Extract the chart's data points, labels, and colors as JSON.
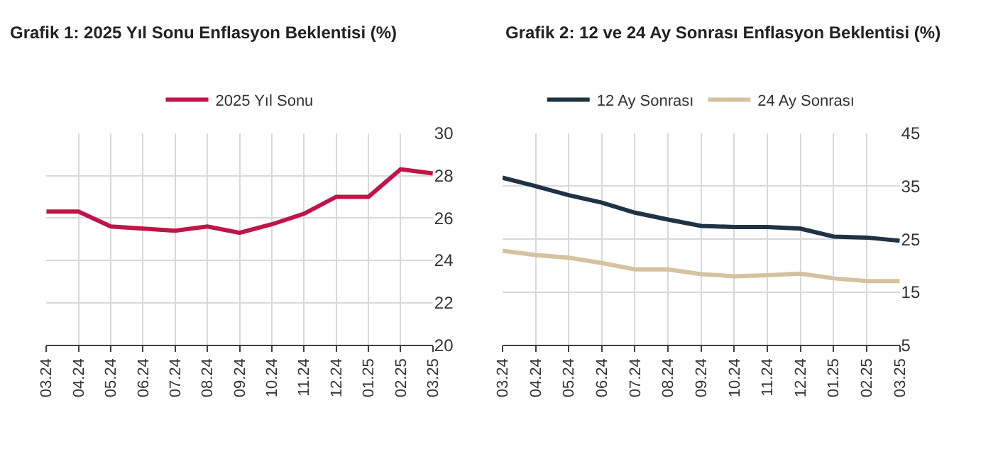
{
  "chart_data": [
    {
      "type": "line",
      "title": "Grafik 1: 2025 Yıl Sonu Enflasyon Beklentisi (%)",
      "categories": [
        "03.24",
        "04.24",
        "05.24",
        "06.24",
        "07.24",
        "08.24",
        "09.24",
        "10.24",
        "11.24",
        "12.24",
        "01.25",
        "02.25",
        "03.25"
      ],
      "series": [
        {
          "name": "2025 Yıl Sonu",
          "color": "#c0144a",
          "values": [
            26.3,
            26.3,
            25.6,
            25.5,
            25.4,
            25.6,
            25.3,
            25.7,
            26.2,
            27.0,
            27.0,
            28.3,
            28.1
          ]
        }
      ],
      "ylim": [
        20,
        30
      ],
      "yticks": [
        20,
        22,
        24,
        26,
        28,
        30
      ],
      "grid": true,
      "legend": "top"
    },
    {
      "type": "line",
      "title": "Grafik 2: 12 ve 24 Ay Sonrası Enflasyon Beklentisi (%)",
      "categories": [
        "03.24",
        "04.24",
        "05.24",
        "06.24",
        "07.24",
        "08.24",
        "09.24",
        "10.24",
        "11.24",
        "12.24",
        "01.25",
        "02.25",
        "03.25"
      ],
      "series": [
        {
          "name": "12 Ay Sonrası",
          "color": "#1f3344",
          "values": [
            36.6,
            35.0,
            33.3,
            31.9,
            30.0,
            28.7,
            27.5,
            27.3,
            27.3,
            27.0,
            25.5,
            25.3,
            24.7
          ]
        },
        {
          "name": "24 Ay Sonrası",
          "color": "#d4c2a0",
          "values": [
            22.8,
            22.0,
            21.5,
            20.5,
            19.3,
            19.3,
            18.4,
            18.0,
            18.2,
            18.5,
            17.6,
            17.1,
            17.1
          ]
        }
      ],
      "ylim": [
        5,
        45
      ],
      "yticks": [
        5,
        15,
        25,
        35,
        45
      ],
      "grid": true,
      "legend": "top"
    }
  ]
}
